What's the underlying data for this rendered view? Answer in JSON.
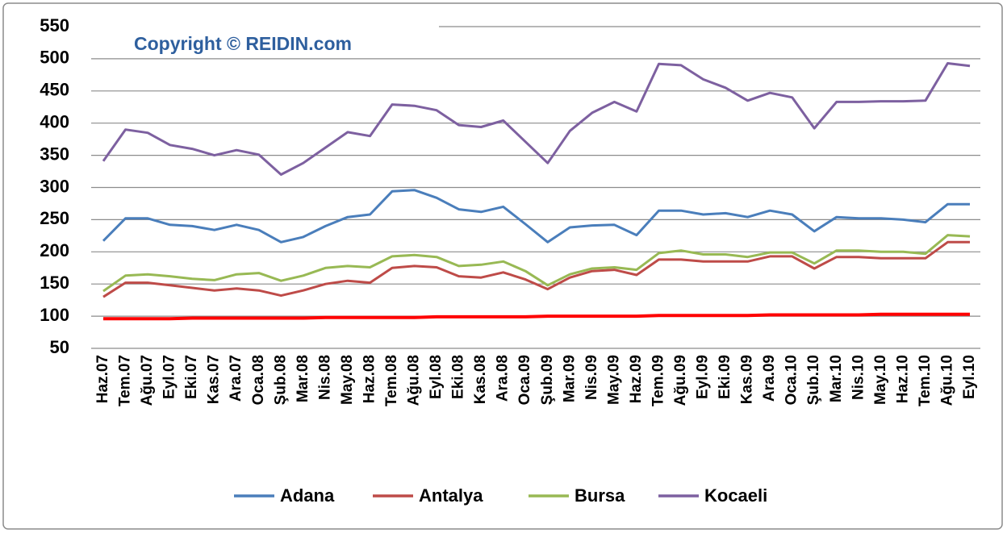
{
  "chart_data": {
    "type": "line",
    "title": "Copyright © REIDIN.com",
    "categories": [
      "Haz.07",
      "Tem.07",
      "Ağu.07",
      "Eyl.07",
      "Eki.07",
      "Kas.07",
      "Ara.07",
      "Oca.08",
      "Şub.08",
      "Mar.08",
      "Nis.08",
      "May.08",
      "Haz.08",
      "Tem.08",
      "Ağu.08",
      "Eyl.08",
      "Eki.08",
      "Kas.08",
      "Ara.08",
      "Oca.09",
      "Şub.09",
      "Mar.09",
      "Nis.09",
      "May.09",
      "Haz.09",
      "Tem.09",
      "Ağu.09",
      "Eyl.09",
      "Eki.09",
      "Kas.09",
      "Ara.09",
      "Oca.10",
      "Şub.10",
      "Mar.10",
      "Nis.10",
      "May.10",
      "Haz.10",
      "Tem.10",
      "Ağu.10",
      "Eyl.10"
    ],
    "series": [
      {
        "name": "Adana",
        "color": "#4a7ebb",
        "values": [
          217,
          252,
          252,
          242,
          240,
          234,
          242,
          234,
          215,
          223,
          240,
          254,
          258,
          294,
          296,
          284,
          266,
          262,
          270,
          243,
          215,
          238,
          241,
          242,
          226,
          264,
          264,
          258,
          260,
          254,
          264,
          258,
          232,
          254,
          252,
          252,
          250,
          246,
          274,
          274
        ]
      },
      {
        "name": "Antalya",
        "color": "#be4b48",
        "values": [
          130,
          152,
          152,
          148,
          144,
          140,
          143,
          140,
          132,
          140,
          150,
          155,
          152,
          175,
          178,
          176,
          162,
          160,
          168,
          157,
          142,
          160,
          170,
          172,
          164,
          188,
          188,
          185,
          185,
          185,
          193,
          193,
          174,
          192,
          192,
          190,
          190,
          190,
          215,
          215
        ]
      },
      {
        "name": "Bursa",
        "color": "#98b954",
        "values": [
          139,
          163,
          165,
          162,
          158,
          156,
          165,
          167,
          155,
          163,
          175,
          178,
          176,
          193,
          195,
          192,
          178,
          180,
          185,
          170,
          148,
          165,
          174,
          176,
          172,
          198,
          202,
          196,
          196,
          192,
          199,
          199,
          182,
          202,
          202,
          200,
          200,
          197,
          226,
          224
        ]
      },
      {
        "name": "Kocaeli",
        "color": "#7d60a0",
        "values": [
          341,
          390,
          385,
          366,
          360,
          350,
          358,
          351,
          320,
          338,
          362,
          386,
          380,
          429,
          427,
          420,
          397,
          394,
          404,
          371,
          338,
          388,
          416,
          433,
          418,
          492,
          490,
          468,
          455,
          435,
          447,
          440,
          392,
          433,
          433,
          434,
          434,
          435,
          493,
          489
        ]
      },
      {
        "color": "#ff0000",
        "values": [
          96,
          96,
          96,
          96,
          97,
          97,
          97,
          97,
          97,
          97,
          98,
          98,
          98,
          98,
          98,
          99,
          99,
          99,
          99,
          99,
          100,
          100,
          100,
          100,
          100,
          101,
          101,
          101,
          101,
          101,
          102,
          102,
          102,
          102,
          102,
          103,
          103,
          103,
          103,
          103
        ]
      }
    ],
    "ylim": [
      50,
      550
    ],
    "yticks": [
      50,
      100,
      150,
      200,
      250,
      300,
      350,
      400,
      450,
      500,
      550
    ],
    "grid": true
  }
}
